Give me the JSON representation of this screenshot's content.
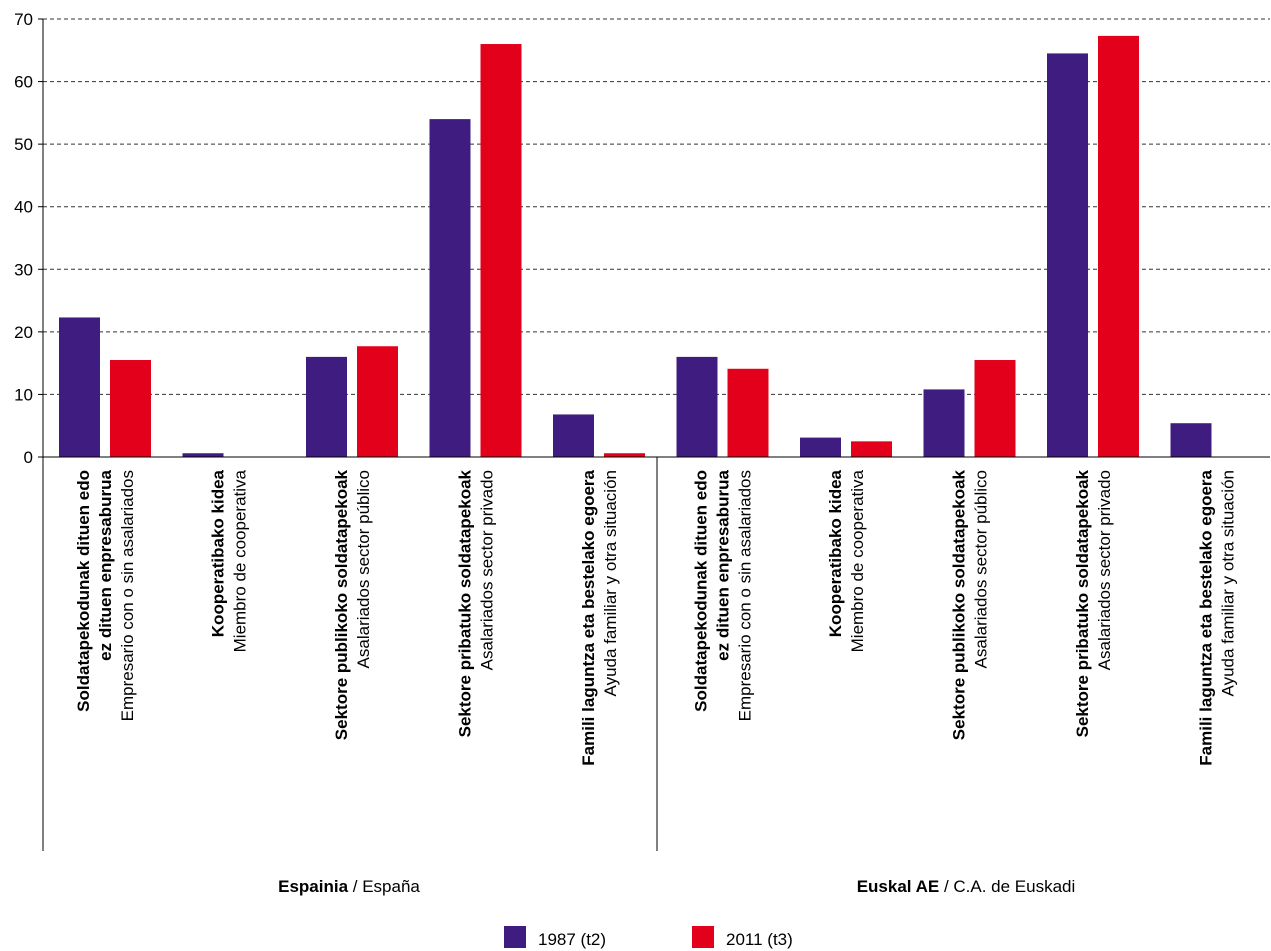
{
  "chart_data": {
    "type": "bar",
    "ylim": [
      0,
      70
    ],
    "yticks": [
      "0",
      "10",
      "20",
      "30",
      "40",
      "50",
      "60",
      "70"
    ],
    "grid": true,
    "legend_position": "bottom-center",
    "colors": {
      "1987 (t2)": "#3f1c7f",
      "2011 (t3)": "#e2001a"
    },
    "groups": [
      {
        "bold": "Espainia",
        "rest": " / España"
      },
      {
        "bold": "Euskal AE",
        "rest": " / C.A. de Euskadi"
      }
    ],
    "categories": [
      {
        "bold": [
          "Soldatapekodunak dituen edo",
          "ez dituen enpresaburua"
        ],
        "regular": "Empresario con o sin asalariados"
      },
      {
        "bold": [
          "Kooperatibako kidea"
        ],
        "regular": "Miembro de cooperativa"
      },
      {
        "bold": [
          "Sektore publikoko soldatapekoak"
        ],
        "regular": "Asalariados sector público"
      },
      {
        "bold": [
          "Sektore pribatuko soldatapekoak"
        ],
        "regular": "Asalariados sector privado"
      },
      {
        "bold": [
          "Famili laguntza eta bestelako egoera"
        ],
        "regular": "Ayuda familiar y otra situación"
      },
      {
        "bold": [
          "Soldatapekodunak dituen edo",
          "ez dituen enpresaburua"
        ],
        "regular": "Empresario con o sin asalariados"
      },
      {
        "bold": [
          "Kooperatibako kidea"
        ],
        "regular": "Miembro de cooperativa"
      },
      {
        "bold": [
          "Sektore publikoko soldatapekoak"
        ],
        "regular": "Asalariados sector público"
      },
      {
        "bold": [
          "Sektore pribatuko soldatapekoak"
        ],
        "regular": "Asalariados sector privado"
      },
      {
        "bold": [
          "Famili laguntza eta bestelako egoera"
        ],
        "regular": "Ayuda familiar y otra situación"
      }
    ],
    "series": [
      {
        "name": "1987 (t2)",
        "values": [
          22.3,
          0.6,
          16.0,
          54.0,
          6.8,
          16.0,
          3.1,
          10.8,
          64.5,
          5.4
        ]
      },
      {
        "name": "2011 (t3)",
        "values": [
          15.5,
          0.0,
          17.7,
          66.0,
          0.6,
          14.1,
          2.5,
          15.5,
          67.3,
          0.0
        ]
      }
    ]
  }
}
